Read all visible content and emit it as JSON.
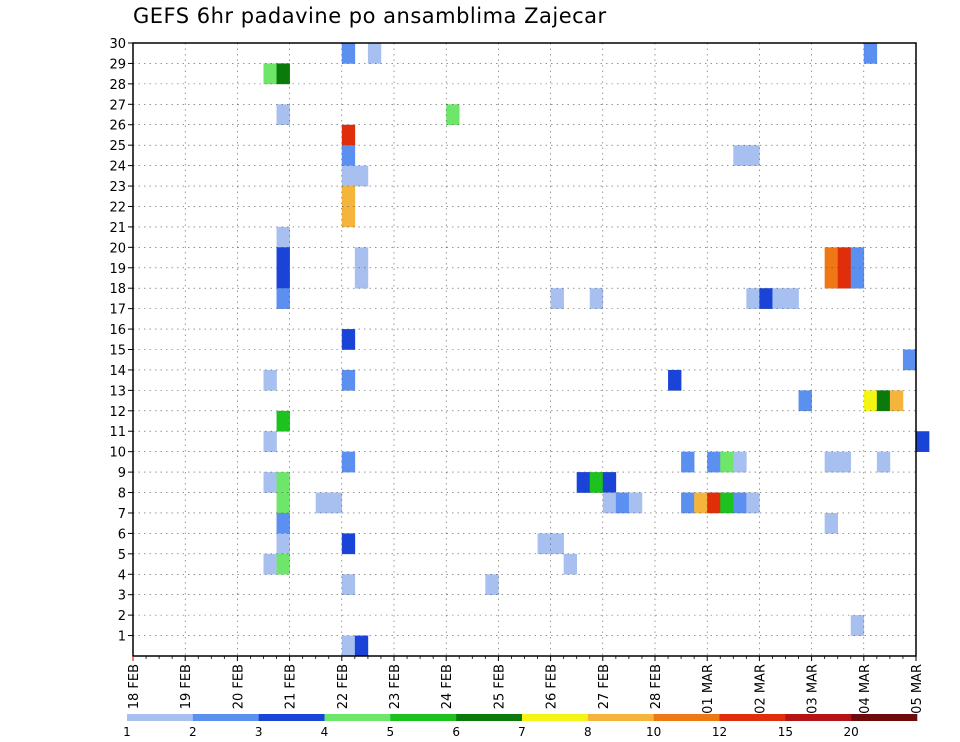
{
  "chart_data": {
    "type": "heatmap",
    "title": "GEFS 6hr padavine po ansamblima Zajecar",
    "xlabel": "",
    "ylabel": "",
    "x_tick_labels": [
      "18 FEB",
      "19 FEB",
      "20 FEB",
      "21 FEB",
      "22 FEB",
      "23 FEB",
      "24 FEB",
      "25 FEB",
      "26 FEB",
      "27 FEB",
      "28 FEB",
      "01 MAR",
      "02 MAR",
      "03 MAR",
      "04 MAR",
      "05 MAR"
    ],
    "y_tick_labels": [
      "1",
      "2",
      "3",
      "4",
      "5",
      "6",
      "7",
      "8",
      "9",
      "10",
      "11",
      "12",
      "13",
      "14",
      "15",
      "16",
      "17",
      "18",
      "19",
      "20",
      "21",
      "22",
      "23",
      "24",
      "25",
      "26",
      "27",
      "28",
      "29",
      "30"
    ],
    "ylim": [
      0,
      30
    ],
    "grid": true,
    "x_start": "18 FEB 00Z",
    "time_step": "6 hours",
    "color_scale": {
      "labels": [
        "1",
        "2",
        "3",
        "4",
        "5",
        "6",
        "7",
        "8",
        "10",
        "12",
        "15",
        "20"
      ],
      "colors": [
        "#a8c0f0",
        "#5b8ff0",
        "#1a44d8",
        "#6ee66a",
        "#1ec21e",
        "#0a7a0a",
        "#f5f514",
        "#f5b43c",
        "#f07814",
        "#e02d0a",
        "#b41414",
        "#6e0a0a"
      ]
    },
    "cells": [
      {
        "member": 30,
        "step": 16,
        "value": 2
      },
      {
        "member": 30,
        "step": 18,
        "value": 1
      },
      {
        "member": 30,
        "step": 56,
        "value": 2
      },
      {
        "member": 29,
        "step": 10,
        "value": 4
      },
      {
        "member": 29,
        "step": 11,
        "value": 6
      },
      {
        "member": 27,
        "step": 11,
        "value": 1
      },
      {
        "member": 27,
        "step": 24,
        "value": 4
      },
      {
        "member": 26,
        "step": 16,
        "value": 12
      },
      {
        "member": 25,
        "step": 16,
        "value": 2
      },
      {
        "member": 25,
        "step": 46,
        "value": 1
      },
      {
        "member": 25,
        "step": 47,
        "value": 1
      },
      {
        "member": 24,
        "step": 16,
        "value": 1
      },
      {
        "member": 24,
        "step": 17,
        "value": 1
      },
      {
        "member": 23,
        "step": 16,
        "value": 8
      },
      {
        "member": 22,
        "step": 16,
        "value": 8
      },
      {
        "member": 21,
        "step": 11,
        "value": 1
      },
      {
        "member": 20,
        "step": 11,
        "value": 3
      },
      {
        "member": 20,
        "step": 17,
        "value": 1
      },
      {
        "member": 20,
        "step": 53,
        "value": 10
      },
      {
        "member": 20,
        "step": 54,
        "value": 12
      },
      {
        "member": 20,
        "step": 55,
        "value": 2
      },
      {
        "member": 19,
        "step": 11,
        "value": 3
      },
      {
        "member": 19,
        "step": 17,
        "value": 1
      },
      {
        "member": 19,
        "step": 53,
        "value": 10
      },
      {
        "member": 19,
        "step": 54,
        "value": 12
      },
      {
        "member": 19,
        "step": 55,
        "value": 2
      },
      {
        "member": 18,
        "step": 11,
        "value": 2
      },
      {
        "member": 18,
        "step": 32,
        "value": 1
      },
      {
        "member": 18,
        "step": 35,
        "value": 1
      },
      {
        "member": 18,
        "step": 47,
        "value": 1
      },
      {
        "member": 18,
        "step": 48,
        "value": 3
      },
      {
        "member": 18,
        "step": 49,
        "value": 1
      },
      {
        "member": 18,
        "step": 50,
        "value": 1
      },
      {
        "member": 16,
        "step": 16,
        "value": 3
      },
      {
        "member": 15,
        "step": 59,
        "value": 2
      },
      {
        "member": 14,
        "step": 10,
        "value": 1
      },
      {
        "member": 14,
        "step": 16,
        "value": 2
      },
      {
        "member": 14,
        "step": 41,
        "value": 3
      },
      {
        "member": 13,
        "step": 51,
        "value": 2
      },
      {
        "member": 13,
        "step": 56,
        "value": 7
      },
      {
        "member": 13,
        "step": 57,
        "value": 6
      },
      {
        "member": 13,
        "step": 58,
        "value": 8
      },
      {
        "member": 12,
        "step": 11,
        "value": 5
      },
      {
        "member": 11,
        "step": 10,
        "value": 1
      },
      {
        "member": 11,
        "step": 60,
        "value": 3
      },
      {
        "member": 10,
        "step": 16,
        "value": 2
      },
      {
        "member": 10,
        "step": 42,
        "value": 2
      },
      {
        "member": 10,
        "step": 44,
        "value": 2
      },
      {
        "member": 10,
        "step": 45,
        "value": 4
      },
      {
        "member": 10,
        "step": 46,
        "value": 1
      },
      {
        "member": 10,
        "step": 53,
        "value": 1
      },
      {
        "member": 10,
        "step": 54,
        "value": 1
      },
      {
        "member": 10,
        "step": 57,
        "value": 1
      },
      {
        "member": 9,
        "step": 10,
        "value": 1
      },
      {
        "member": 9,
        "step": 11,
        "value": 4
      },
      {
        "member": 9,
        "step": 34,
        "value": 3
      },
      {
        "member": 9,
        "step": 35,
        "value": 5
      },
      {
        "member": 9,
        "step": 36,
        "value": 3
      },
      {
        "member": 8,
        "step": 11,
        "value": 4
      },
      {
        "member": 8,
        "step": 14,
        "value": 1
      },
      {
        "member": 8,
        "step": 15,
        "value": 1
      },
      {
        "member": 8,
        "step": 36,
        "value": 1
      },
      {
        "member": 8,
        "step": 37,
        "value": 2
      },
      {
        "member": 8,
        "step": 38,
        "value": 1
      },
      {
        "member": 8,
        "step": 42,
        "value": 2
      },
      {
        "member": 8,
        "step": 43,
        "value": 8
      },
      {
        "member": 8,
        "step": 44,
        "value": 12
      },
      {
        "member": 8,
        "step": 45,
        "value": 5
      },
      {
        "member": 8,
        "step": 46,
        "value": 2
      },
      {
        "member": 8,
        "step": 47,
        "value": 1
      },
      {
        "member": 7,
        "step": 11,
        "value": 2
      },
      {
        "member": 7,
        "step": 53,
        "value": 1
      },
      {
        "member": 6,
        "step": 11,
        "value": 1
      },
      {
        "member": 6,
        "step": 16,
        "value": 3
      },
      {
        "member": 6,
        "step": 31,
        "value": 1
      },
      {
        "member": 6,
        "step": 32,
        "value": 1
      },
      {
        "member": 5,
        "step": 10,
        "value": 1
      },
      {
        "member": 5,
        "step": 11,
        "value": 4
      },
      {
        "member": 5,
        "step": 33,
        "value": 1
      },
      {
        "member": 4,
        "step": 16,
        "value": 1
      },
      {
        "member": 4,
        "step": 27,
        "value": 1
      },
      {
        "member": 2,
        "step": 55,
        "value": 1
      },
      {
        "member": 1,
        "step": 16,
        "value": 1
      },
      {
        "member": 1,
        "step": 17,
        "value": 3
      }
    ]
  }
}
